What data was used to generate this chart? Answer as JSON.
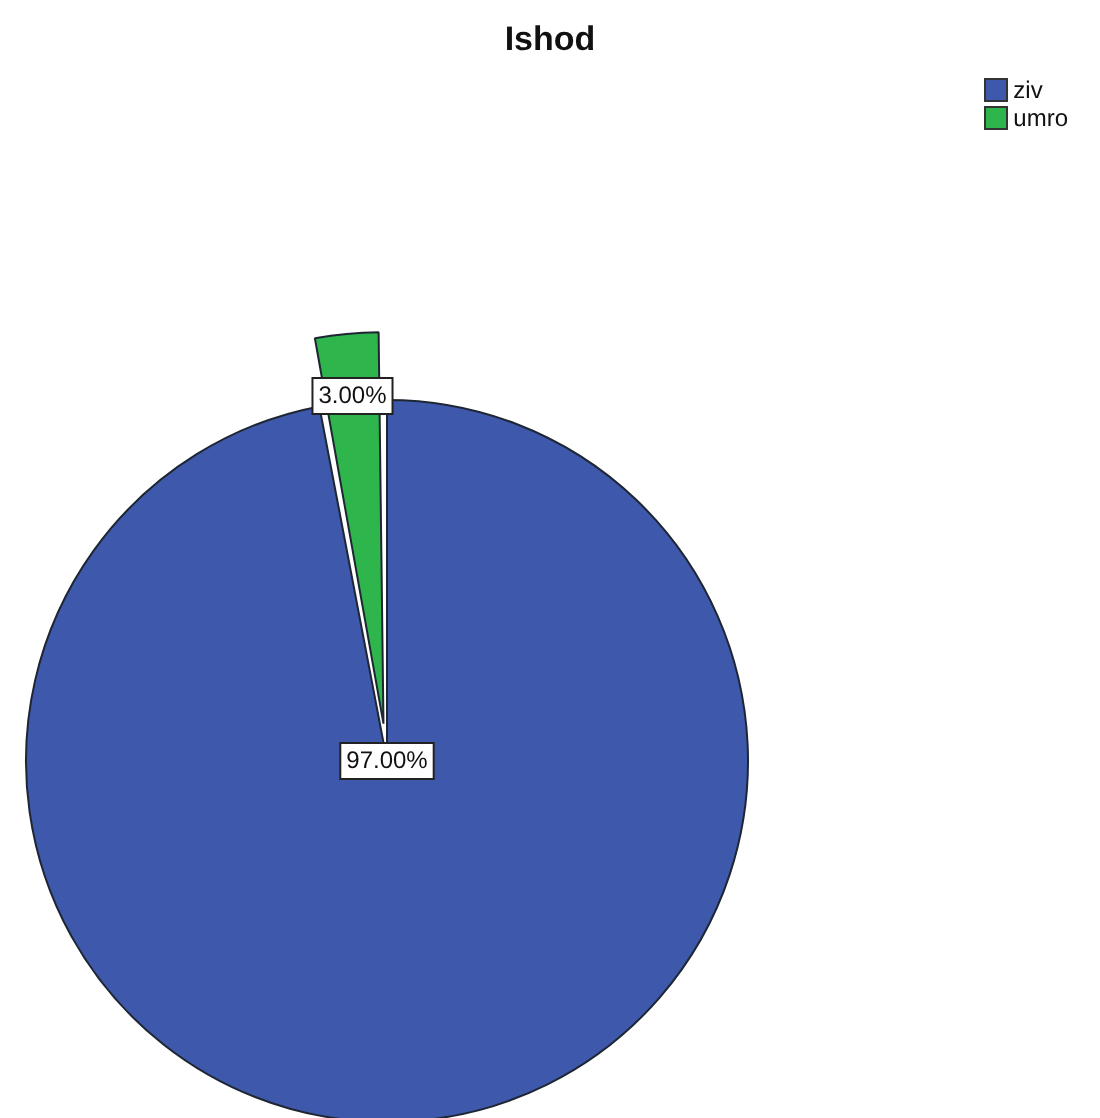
{
  "chart_data": {
    "type": "pie",
    "title": "Ishod",
    "categories": [
      "ziv",
      "umro"
    ],
    "values": [
      97,
      3
    ],
    "value_labels": [
      "97.00%",
      "3.00%"
    ],
    "colors": [
      "#3e58ac",
      "#2eb54c"
    ],
    "legend": "top right"
  }
}
